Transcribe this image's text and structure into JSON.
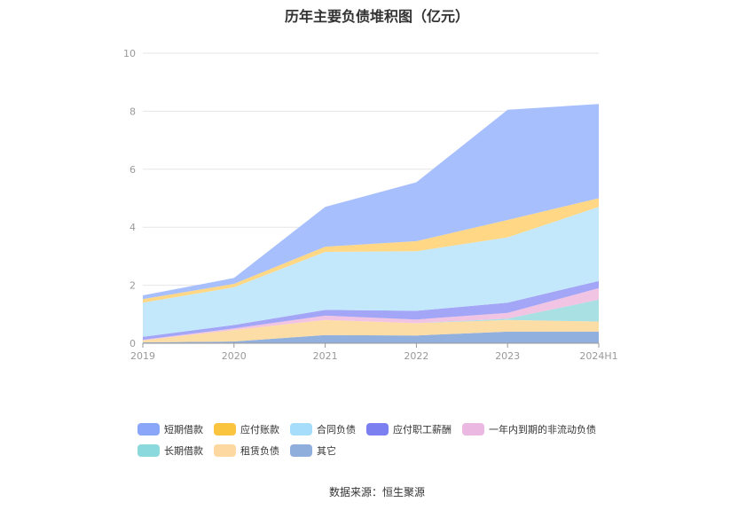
{
  "title": "历年主要负债堆积图（亿元）",
  "source": "数据来源：恒生聚源",
  "chart_data": {
    "type": "area",
    "stacked": true,
    "categories": [
      "2019",
      "2020",
      "2021",
      "2022",
      "2023",
      "2024H1"
    ],
    "ylim": [
      0,
      10
    ],
    "yticks": [
      0,
      2,
      4,
      6,
      8,
      10
    ],
    "grid": true,
    "legend_position": "bottom",
    "series": [
      {
        "name": "其它",
        "color": "#92B0DD",
        "values": [
          0.03,
          0.06,
          0.28,
          0.27,
          0.4,
          0.4
        ]
      },
      {
        "name": "租赁负债",
        "color": "#FDDDA6",
        "values": [
          0.07,
          0.4,
          0.52,
          0.42,
          0.4,
          0.35
        ]
      },
      {
        "name": "长期借款",
        "color": "#A8E0E3",
        "values": [
          0,
          0,
          0,
          0,
          0.05,
          0.75
        ]
      },
      {
        "name": "一年内到期的非流动负债",
        "color": "#F0C4E2",
        "values": [
          0.02,
          0.05,
          0.15,
          0.13,
          0.2,
          0.4
        ]
      },
      {
        "name": "应付职工薪酬",
        "color": "#A3A6F6",
        "values": [
          0.1,
          0.12,
          0.2,
          0.3,
          0.35,
          0.25
        ]
      },
      {
        "name": "合同负债",
        "color": "#C4E8FB",
        "values": [
          1.18,
          1.3,
          2.0,
          2.05,
          2.25,
          2.55
        ]
      },
      {
        "name": "应付账款",
        "color": "#FFD785",
        "values": [
          0.12,
          0.12,
          0.18,
          0.35,
          0.6,
          0.3
        ]
      },
      {
        "name": "短期借款",
        "color": "#A7BFFD",
        "values": [
          0.13,
          0.2,
          1.37,
          2.03,
          3.8,
          3.25
        ]
      }
    ]
  },
  "legend": [
    {
      "label": "短期借款",
      "color": "#8AA6F8"
    },
    {
      "label": "应付账款",
      "color": "#FBC43E"
    },
    {
      "label": "合同负债",
      "color": "#A6DDFB"
    },
    {
      "label": "应付职工薪酬",
      "color": "#7B7FF0"
    },
    {
      "label": "一年内到期的非流动负债",
      "color": "#EAB8E0"
    },
    {
      "label": "长期借款",
      "color": "#8CD9DD"
    },
    {
      "label": "租赁负债",
      "color": "#FDD9A1"
    },
    {
      "label": "其它",
      "color": "#8FAEDB"
    }
  ]
}
